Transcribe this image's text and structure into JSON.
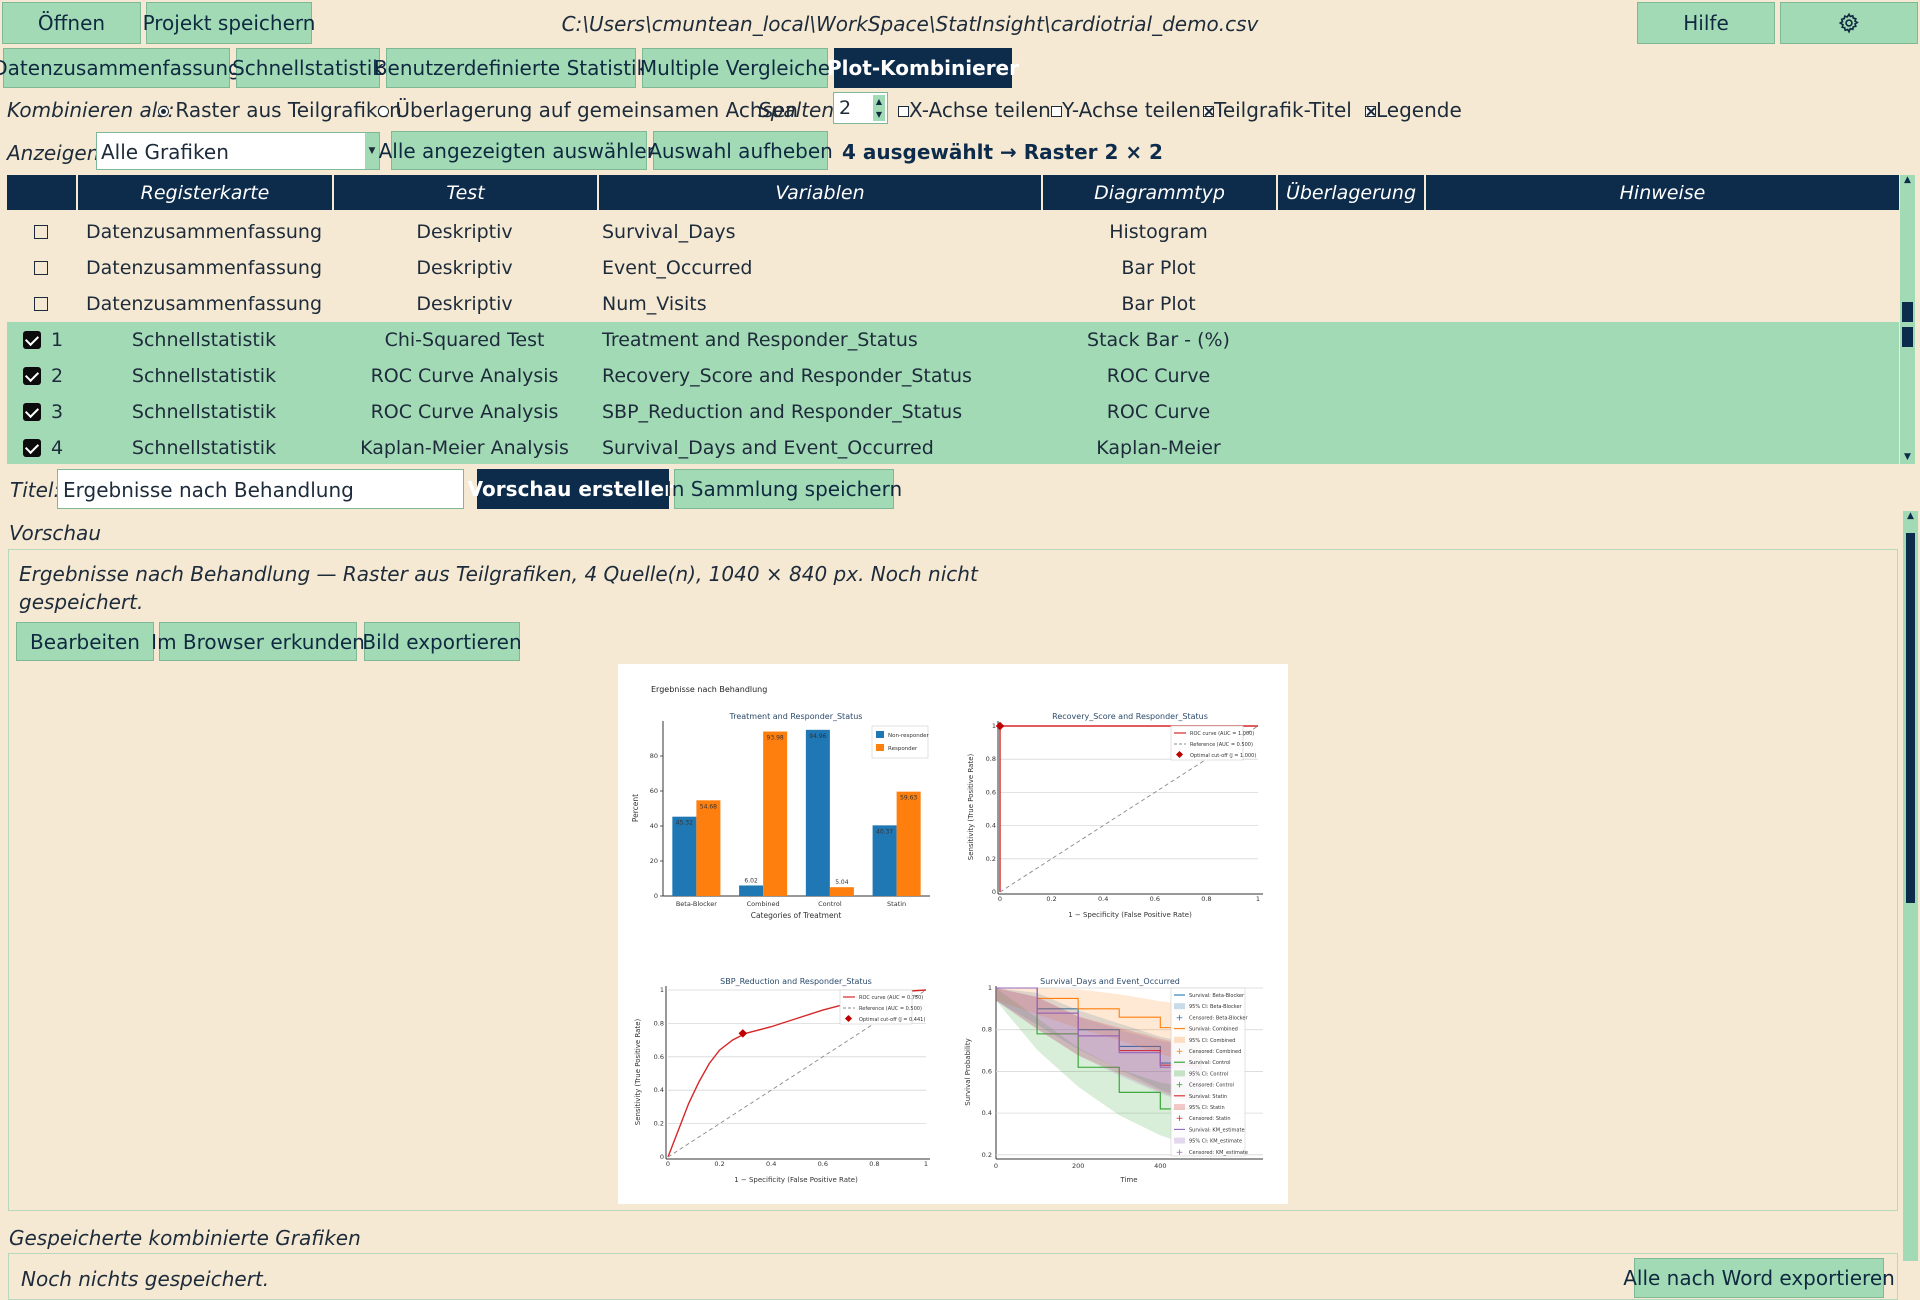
{
  "toolbar": {
    "open": "Öffnen",
    "save_project": "Projekt speichern",
    "file_path": "C:\\Users\\cmuntean_local\\WorkSpace\\StatInsight\\cardiotrial_demo.csv",
    "help": "Hilfe",
    "settings_icon": "gear-icon"
  },
  "tabs": [
    {
      "label": "Datenzusammenfassung",
      "active": false
    },
    {
      "label": "Schnellstatistik",
      "active": false
    },
    {
      "label": "Benutzerdefinierte Statistik",
      "active": false
    },
    {
      "label": "Multiple Vergleiche",
      "active": false
    },
    {
      "label": "Plot-Kombinierer",
      "active": true
    }
  ],
  "options": {
    "combine_label": "Kombinieren als:",
    "grid_label": "Raster aus Teilgrafiken",
    "overlay_label": "Überlagerung auf gemeinsamen Achsen",
    "mode": "grid",
    "columns_label": "Spalten:",
    "columns_value": "2",
    "share_x": "X-Achse teilen",
    "share_x_checked": false,
    "share_y": "Y-Achse teilen",
    "share_y_checked": false,
    "subplot_titles": "Teilgrafik-Titel",
    "subplot_titles_checked": true,
    "legend": "Legende",
    "legend_checked": true
  },
  "filter": {
    "show_label": "Anzeigen:",
    "show_value": "Alle Grafiken",
    "select_all": "Alle angezeigten auswählen",
    "clear": "Auswahl aufheben",
    "selection_status": "4 ausgewählt → Raster 2 × 2"
  },
  "table": {
    "headers": [
      "Registerkarte",
      "Test",
      "Variablen",
      "Diagrammtyp",
      "Überlagerung",
      "Hinweise"
    ],
    "rows": [
      {
        "checked": false,
        "order": "",
        "tab": "Datenzusammenfassung",
        "test": "Deskriptiv",
        "variables": "Survival_Days",
        "type": "Histogram",
        "overlay": "",
        "notes": ""
      },
      {
        "checked": false,
        "order": "",
        "tab": "Datenzusammenfassung",
        "test": "Deskriptiv",
        "variables": "Event_Occurred",
        "type": "Bar Plot",
        "overlay": "",
        "notes": ""
      },
      {
        "checked": false,
        "order": "",
        "tab": "Datenzusammenfassung",
        "test": "Deskriptiv",
        "variables": "Num_Visits",
        "type": "Bar Plot",
        "overlay": "",
        "notes": ""
      },
      {
        "checked": true,
        "order": "1",
        "tab": "Schnellstatistik",
        "test": "Chi-Squared Test",
        "variables": "Treatment and Responder_Status",
        "type": "Stack Bar - (%)",
        "overlay": "",
        "notes": ""
      },
      {
        "checked": true,
        "order": "2",
        "tab": "Schnellstatistik",
        "test": "ROC Curve Analysis",
        "variables": "Recovery_Score and Responder_Status",
        "type": "ROC Curve",
        "overlay": "",
        "notes": ""
      },
      {
        "checked": true,
        "order": "3",
        "tab": "Schnellstatistik",
        "test": "ROC Curve Analysis",
        "variables": "SBP_Reduction and Responder_Status",
        "type": "ROC Curve",
        "overlay": "",
        "notes": ""
      },
      {
        "checked": true,
        "order": "4",
        "tab": "Schnellstatistik",
        "test": "Kaplan-Meier Analysis",
        "variables": "Survival_Days and Event_Occurred",
        "type": "Kaplan-Meier",
        "overlay": "",
        "notes": ""
      }
    ]
  },
  "title_row": {
    "label": "Titel:",
    "value": "Ergebnisse nach Behandlung",
    "preview_button": "Vorschau erstellen",
    "save_button": "In Sammlung speichern"
  },
  "preview": {
    "section_label": "Vorschau",
    "summary_line1": "Ergebnisse nach Behandlung — Raster aus Teilgrafiken, 4 Quelle(n), 1040 × 840 px. Noch nicht",
    "summary_line2": "gespeichert.",
    "edit": "Bearbeiten",
    "explore": "Im Browser erkunden",
    "export": "Bild exportieren",
    "figure_title": "Ergebnisse nach Behandlung"
  },
  "saved": {
    "section_label": "Gespeicherte kombinierte Grafiken",
    "empty_text": "Noch nichts gespeichert.",
    "export_all": "Alle nach Word exportieren"
  },
  "chart_data": [
    {
      "type": "bar",
      "title": "Treatment and Responder_Status",
      "xlabel": "Categories of Treatment",
      "ylabel": "Percent",
      "categories": [
        "Beta-Blocker",
        "Combined",
        "Control",
        "Statin"
      ],
      "series": [
        {
          "name": "Non-responder",
          "color": "#1f77b4",
          "values": [
            45.32,
            6.02,
            94.96,
            40.37
          ]
        },
        {
          "name": "Responder",
          "color": "#ff7f0e",
          "values": [
            54.68,
            93.98,
            5.04,
            59.63
          ]
        }
      ],
      "value_labels": [
        "45.32",
        "6.02",
        "94.96",
        "40.37",
        "54.68",
        "93.98",
        "5.04",
        "59.63"
      ],
      "yticks": [
        "0",
        "20",
        "40",
        "60",
        "80"
      ],
      "ylim": [
        0,
        100
      ],
      "legend": "top-right"
    },
    {
      "type": "line",
      "title": "Recovery_Score and Responder_Status",
      "xlabel": "1 − Specificity (False Positive Rate)",
      "ylabel": "Sensitivity (True Positive Rate)",
      "xticks": [
        "0",
        "0.2",
        "0.4",
        "0.6",
        "0.8",
        "1"
      ],
      "yticks": [
        "0",
        "0.2",
        "0.4",
        "0.6",
        "0.8",
        "1"
      ],
      "series": [
        {
          "name": "ROC curve (AUC = 1.000)",
          "color": "#d62728",
          "points": [
            [
              0,
              0
            ],
            [
              0,
              1
            ],
            [
              1,
              1
            ]
          ]
        },
        {
          "name": "Reference (AUC = 0.500)",
          "color": "#888888",
          "points": [
            [
              0,
              0
            ],
            [
              1,
              1
            ]
          ]
        }
      ],
      "optimal_point": {
        "name": "Optimal cut-off (J = 1.000)",
        "x": 0,
        "y": 1
      },
      "legend": "top-right"
    },
    {
      "type": "line",
      "title": "SBP_Reduction and Responder_Status",
      "xlabel": "1 − Specificity (False Positive Rate)",
      "ylabel": "Sensitivity (True Positive Rate)",
      "xticks": [
        "0",
        "0.2",
        "0.4",
        "0.6",
        "0.8",
        "1"
      ],
      "yticks": [
        "0",
        "0.2",
        "0.4",
        "0.6",
        "0.8",
        "1"
      ],
      "series": [
        {
          "name": "ROC curve (AUC = 0.750)",
          "color": "#d62728",
          "points": [
            [
              0,
              0
            ],
            [
              0.02,
              0.08
            ],
            [
              0.05,
              0.2
            ],
            [
              0.08,
              0.32
            ],
            [
              0.12,
              0.45
            ],
            [
              0.16,
              0.56
            ],
            [
              0.2,
              0.64
            ],
            [
              0.25,
              0.7
            ],
            [
              0.3,
              0.74
            ],
            [
              0.4,
              0.78
            ],
            [
              0.5,
              0.83
            ],
            [
              0.6,
              0.88
            ],
            [
              0.7,
              0.92
            ],
            [
              0.8,
              0.96
            ],
            [
              0.9,
              0.99
            ],
            [
              1,
              1
            ]
          ]
        },
        {
          "name": "Reference (AUC = 0.500)",
          "color": "#888888",
          "points": [
            [
              0,
              0
            ],
            [
              1,
              1
            ]
          ]
        }
      ],
      "optimal_point": {
        "name": "Optimal cut-off (J = 0.441)",
        "x": 0.29,
        "y": 0.74
      },
      "legend": "top-right"
    },
    {
      "type": "line",
      "title": "Survival_Days and Event_Occurred",
      "xlabel": "Time",
      "ylabel": "Survival Probability",
      "xticks": [
        "0",
        "200",
        "400"
      ],
      "yticks": [
        "0.2",
        "0.4",
        "0.6",
        "0.8",
        "1"
      ],
      "series": [
        {
          "name": "Survival: Beta-Blocker",
          "color": "#1f77b4",
          "points": [
            [
              0,
              1
            ],
            [
              100,
              0.9
            ],
            [
              200,
              0.8
            ],
            [
              300,
              0.72
            ],
            [
              400,
              0.64
            ],
            [
              500,
              0.58
            ]
          ]
        },
        {
          "name": "Survival: Combined",
          "color": "#ff7f0e",
          "points": [
            [
              0,
              1
            ],
            [
              100,
              0.95
            ],
            [
              200,
              0.9
            ],
            [
              300,
              0.86
            ],
            [
              400,
              0.81
            ],
            [
              500,
              0.77
            ]
          ]
        },
        {
          "name": "Survival: Control",
          "color": "#2ca02c",
          "points": [
            [
              0,
              1
            ],
            [
              100,
              0.78
            ],
            [
              200,
              0.62
            ],
            [
              300,
              0.5
            ],
            [
              400,
              0.42
            ],
            [
              500,
              0.37
            ]
          ]
        },
        {
          "name": "Survival: Statin",
          "color": "#d62728",
          "points": [
            [
              0,
              1
            ],
            [
              100,
              0.88
            ],
            [
              200,
              0.77
            ],
            [
              300,
              0.7
            ],
            [
              400,
              0.63
            ],
            [
              500,
              0.57
            ]
          ]
        },
        {
          "name": "Survival: KM_estimate",
          "color": "#9467bd",
          "points": [
            [
              0,
              1
            ],
            [
              100,
              0.88
            ],
            [
              200,
              0.77
            ],
            [
              300,
              0.69
            ],
            [
              400,
              0.62
            ],
            [
              500,
              0.57
            ]
          ]
        }
      ],
      "legend_entries": [
        "Survival: Beta-Blocker",
        "95% CI: Beta-Blocker",
        "Censored: Beta-Blocker",
        "Survival: Combined",
        "95% CI: Combined",
        "Censored: Combined",
        "Survival: Control",
        "95% CI: Control",
        "Censored: Control",
        "Survival: Statin",
        "95% CI: Statin",
        "Censored: Statin",
        "Survival: KM_estimate",
        "95% CI: KM_estimate",
        "Censored: KM_estimate"
      ],
      "legend_colors": [
        "#1f77b4",
        "#1f77b4",
        "#1f77b4",
        "#ff7f0e",
        "#ff7f0e",
        "#ff7f0e",
        "#2ca02c",
        "#2ca02c",
        "#2ca02c",
        "#d62728",
        "#d62728",
        "#d62728",
        "#9467bd",
        "#9467bd",
        "#9467bd"
      ],
      "legend": "right"
    }
  ]
}
